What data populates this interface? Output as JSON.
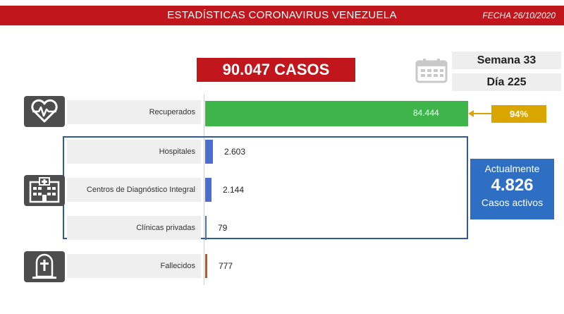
{
  "header": {
    "title": "ESTADÍSTICAS CORONAVIRUS VENEZUELA",
    "date": "FECHA 26/10/2020"
  },
  "total_cases": "90.047 CASOS",
  "week": "Semana 33",
  "day": "Día 225",
  "recovered_pct": "94%",
  "active": {
    "line1": "Actualmente",
    "value": "4.826",
    "line2": "Casos activos"
  },
  "icons": [
    "heart-monitor-icon",
    "hospital-icon",
    "tombstone-icon",
    "calendar-icon"
  ],
  "colors": {
    "header_red": "#c0161c",
    "recovered_green": "#3db54a",
    "hospital_blue": "#4a6fd1",
    "deceased_orange": "#c45a10",
    "pct_gold": "#d9a600",
    "active_blue": "#2e6fc4"
  },
  "chart_data": {
    "type": "bar",
    "orientation": "horizontal",
    "categories": [
      "Recuperados",
      "Hospitales",
      "Centros de Diagnóstico Integral",
      "Clínicas privadas",
      "Fallecidos"
    ],
    "values": [
      84444,
      2603,
      2144,
      79,
      777
    ],
    "value_labels": [
      "84.444",
      "2.603",
      "2.144",
      "79",
      "777"
    ],
    "title": "",
    "xlabel": "",
    "ylabel": ""
  }
}
